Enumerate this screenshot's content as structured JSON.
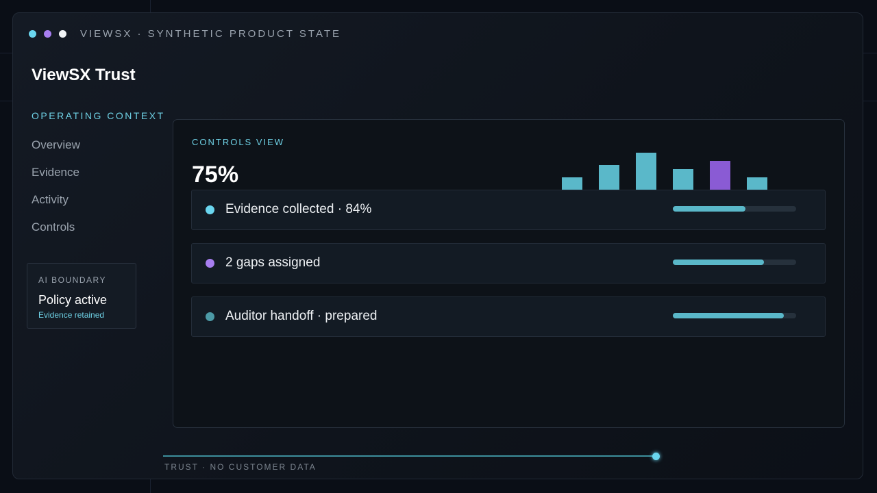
{
  "window": {
    "title": "VIEWSX · SYNTHETIC PRODUCT STATE",
    "dots": [
      "#6ad6ef",
      "#a77ef0",
      "#f2f4f7"
    ]
  },
  "app": {
    "title": "ViewSX Trust"
  },
  "sidebar": {
    "section_label": "OPERATING CONTEXT",
    "items": [
      {
        "label": "Overview"
      },
      {
        "label": "Evidence"
      },
      {
        "label": "Activity"
      },
      {
        "label": "Controls"
      }
    ],
    "ai_card": {
      "label": "AI BOUNDARY",
      "status": "Policy active",
      "sub": "Evidence retained"
    }
  },
  "panel": {
    "label": "CONTROLS VIEW",
    "metric": "75%",
    "rows": [
      {
        "text": "Evidence collected · 84%",
        "dot_color": "#6ad6ef",
        "progress": 0.59
      },
      {
        "text": "2 gaps assigned",
        "dot_color": "#a77ef0",
        "progress": 0.74
      },
      {
        "text": "Auditor handoff · prepared",
        "dot_color": "#4c9aa6",
        "progress": 0.9
      }
    ]
  },
  "chart_data": {
    "type": "bar",
    "values": [
      3,
      6,
      9,
      5,
      7,
      3
    ],
    "colors": [
      "#5ab8c9",
      "#5ab8c9",
      "#5ab8c9",
      "#5ab8c9",
      "#8a5bd4",
      "#5ab8c9"
    ]
  },
  "footer": {
    "label": "TRUST · NO CUSTOMER DATA",
    "timeline_progress": 1.0
  },
  "colors": {
    "accent": "#6fd2e6",
    "accent_purple": "#a77ef0",
    "bar_fill": "#5ab8c9"
  }
}
